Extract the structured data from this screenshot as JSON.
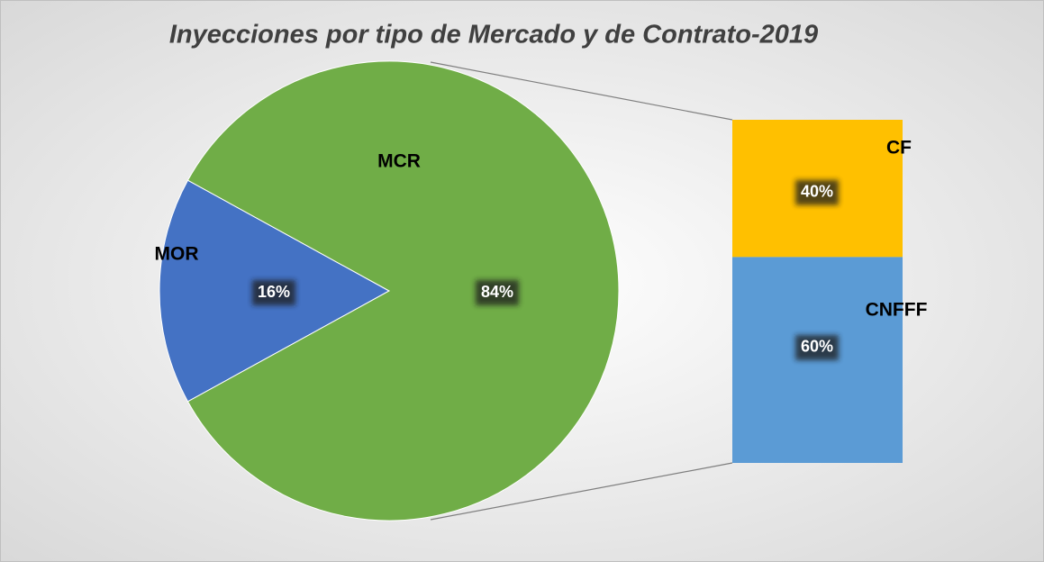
{
  "chart_data": {
    "type": "pie",
    "title": "Inyecciones por tipo de Mercado y de Contrato-2019",
    "categories": [
      "MOR",
      "MCR"
    ],
    "values": [
      16,
      84
    ],
    "value_labels": [
      "16%",
      "84%"
    ],
    "colors": [
      "#4472c4",
      "#70ad47"
    ],
    "breakdown": {
      "type": "bar",
      "categories": [
        "CF",
        "CNFFF"
      ],
      "values": [
        40,
        60
      ],
      "value_labels": [
        "40%",
        "60%"
      ],
      "colors": [
        "#ffc000",
        "#5b9bd5"
      ]
    }
  }
}
